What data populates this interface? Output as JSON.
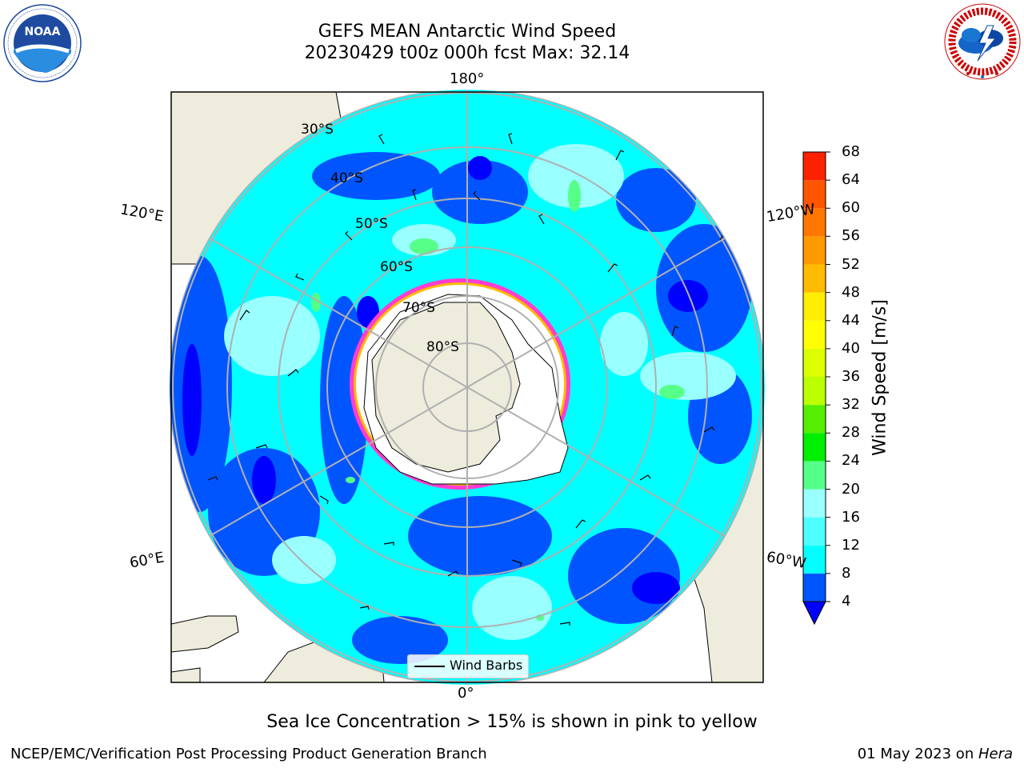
{
  "title": {
    "line1": "GEFS MEAN Antarctic Wind Speed",
    "line2": "20230429 t00z 000h fcst   Max: 32.14"
  },
  "logos": {
    "left": {
      "icon": "noaa-logo",
      "text": "NOAA",
      "ring_text": "NATIONAL OCEANIC AND ATMOSPHERIC ADMINISTRATION · U.S. DEPARTMENT OF COMMERCE"
    },
    "right": {
      "icon": "nws-logo",
      "ring_text": "NATIONAL WEATHER SERVICE"
    }
  },
  "map": {
    "projection": "south-polar-stereographic",
    "longitude_labels": {
      "top": "180°",
      "bottom": "0°",
      "upper_left": "120°E",
      "upper_right": "120°W",
      "lower_left": "60°E",
      "lower_right": "60°W"
    },
    "latitude_labels": [
      "30°S",
      "40°S",
      "50°S",
      "60°S",
      "70°S",
      "80°S"
    ],
    "legend": {
      "label": "Wind Barbs"
    },
    "colors": {
      "land": "#eeecdc",
      "ice_shelf": "#ffffff",
      "sea_ice": "#ff3dd0",
      "graticule": "#b0b0b0"
    }
  },
  "colorbar": {
    "label": "Wind Speed [m/s]",
    "ticks": [
      "68",
      "64",
      "60",
      "56",
      "52",
      "48",
      "44",
      "40",
      "36",
      "32",
      "28",
      "24",
      "20",
      "16",
      "12",
      "8",
      "4"
    ],
    "colors_bottom_to_top": [
      "#0055ff",
      "#00ffff",
      "#4dffff",
      "#99ffff",
      "#55ff88",
      "#00ee00",
      "#55ee00",
      "#bbff00",
      "#ddff00",
      "#ffff00",
      "#ffee00",
      "#ffbb00",
      "#ff9900",
      "#ff7700",
      "#ff5500",
      "#ff2200"
    ],
    "under_color": "#0000ff"
  },
  "note": "Sea Ice Concentration > 15% is shown in pink to yellow",
  "footer": {
    "left": "NCEP/EMC/Verification Post Processing Product Generation Branch",
    "right_prefix": "01 May 2023 on ",
    "right_host": "Hera"
  }
}
